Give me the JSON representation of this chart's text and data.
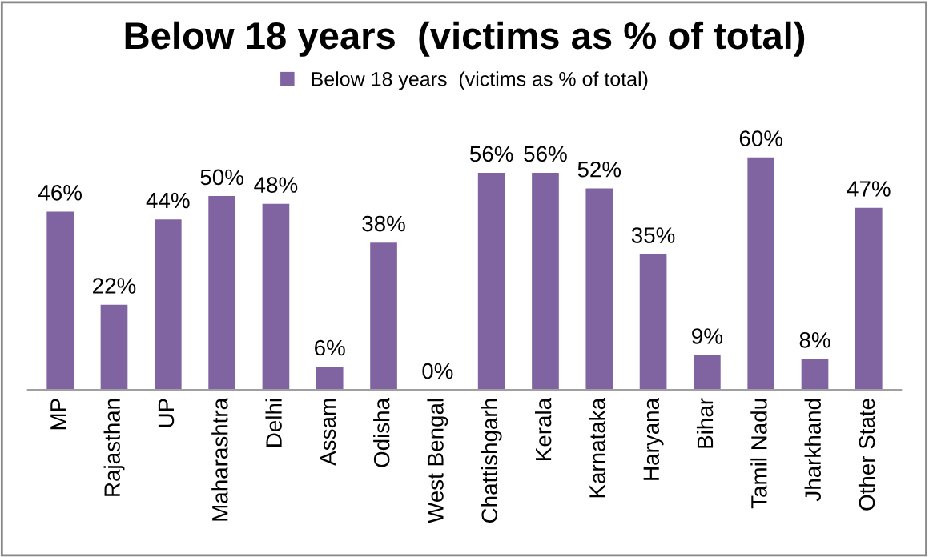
{
  "chart_data": {
    "type": "bar",
    "title": "Below 18 years  (victims as % of total)",
    "categories": [
      "MP",
      "Rajasthan",
      "UP",
      "Maharashtra",
      "Delhi",
      "Assam",
      "Odisha",
      "West Bengal",
      "Chattishgarh",
      "Kerala",
      "Karnataka",
      "Haryana",
      "Bihar",
      "Tamil Nadu",
      "Jharkhand",
      "Other State"
    ],
    "series": [
      {
        "name": "Below 18 years  (victims as % of total)",
        "color": "#8064a2",
        "values": [
          46,
          22,
          44,
          50,
          48,
          6,
          38,
          0,
          56,
          56,
          52,
          35,
          9,
          60,
          8,
          47
        ],
        "value_labels": [
          "46%",
          "22%",
          "44%",
          "50%",
          "48%",
          "6%",
          "38%",
          "0%",
          "56%",
          "56%",
          "52%",
          "35%",
          "9%",
          "60%",
          "8%",
          "47%"
        ]
      }
    ],
    "legend": "top",
    "grid": false
  }
}
